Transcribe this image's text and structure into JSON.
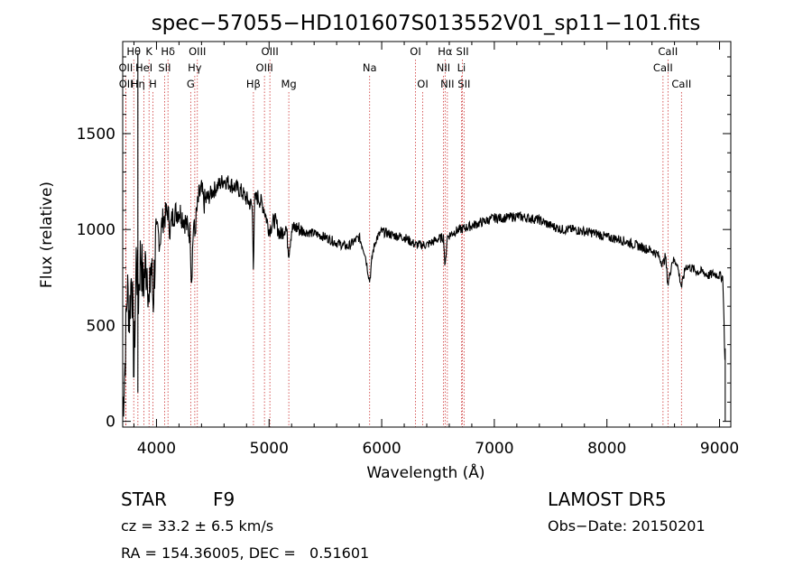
{
  "chart_data": {
    "type": "line",
    "title": "spec−57055−HD101607S013552V01_sp11−101.fits",
    "xlabel": "Wavelength (Å)",
    "ylabel": "Flux (relative)",
    "xlim": [
      3700,
      9100
    ],
    "ylim": [
      -30,
      1980
    ],
    "xticks": [
      4000,
      5000,
      6000,
      7000,
      8000,
      9000
    ],
    "yticks": [
      0,
      500,
      1000,
      1500
    ],
    "grid": false,
    "line_color": "#000000",
    "marker_color": "#cc3333",
    "spectral_lines": [
      {
        "label": "Hθ",
        "wavelength": 3798,
        "row": 0
      },
      {
        "label": "K",
        "wavelength": 3934,
        "row": 0
      },
      {
        "label": "Hδ",
        "wavelength": 4102,
        "row": 0
      },
      {
        "label": "OIII",
        "wavelength": 4363,
        "row": 0
      },
      {
        "label": "OIII",
        "wavelength": 5007,
        "row": 0
      },
      {
        "label": "OI",
        "wavelength": 6300,
        "row": 0
      },
      {
        "label": "Hα",
        "wavelength": 6563,
        "row": 0
      },
      {
        "label": "SII",
        "wavelength": 6717,
        "row": 0
      },
      {
        "label": "CaII",
        "wavelength": 8542,
        "row": 0
      },
      {
        "label": "OII",
        "wavelength": 3727,
        "row": 1
      },
      {
        "label": "HeI",
        "wavelength": 3889,
        "row": 1
      },
      {
        "label": "SII",
        "wavelength": 4072,
        "row": 1
      },
      {
        "label": "Hγ",
        "wavelength": 4340,
        "row": 1
      },
      {
        "label": "OIII",
        "wavelength": 4959,
        "row": 1
      },
      {
        "label": "Na",
        "wavelength": 5893,
        "row": 1
      },
      {
        "label": "NII",
        "wavelength": 6548,
        "row": 1
      },
      {
        "label": "Li",
        "wavelength": 6708,
        "row": 1
      },
      {
        "label": "CaII",
        "wavelength": 8498,
        "row": 1
      },
      {
        "label": "OII",
        "wavelength": 3729,
        "row": 2
      },
      {
        "label": "Hη",
        "wavelength": 3835,
        "row": 2
      },
      {
        "label": "H",
        "wavelength": 3968,
        "row": 2
      },
      {
        "label": "G",
        "wavelength": 4304,
        "row": 2
      },
      {
        "label": "Hβ",
        "wavelength": 4861,
        "row": 2
      },
      {
        "label": "Mg",
        "wavelength": 5175,
        "row": 2
      },
      {
        "label": "OI",
        "wavelength": 6364,
        "row": 2
      },
      {
        "label": "NII",
        "wavelength": 6583,
        "row": 2
      },
      {
        "label": "SII",
        "wavelength": 6731,
        "row": 2
      },
      {
        "label": "CaII",
        "wavelength": 8662,
        "row": 2
      }
    ],
    "series": [
      {
        "wavelength": [
          3700,
          3720,
          3740,
          3760,
          3780,
          3800,
          3820,
          3840,
          3860,
          3880,
          3900,
          3920,
          3935,
          3950,
          3970,
          3990,
          4000,
          4010,
          4030,
          4050,
          4070,
          4100,
          4120,
          4150,
          4200,
          4250,
          4280,
          4300,
          4310,
          4330,
          4340,
          4350,
          4360,
          4380,
          4400,
          4420,
          4450,
          4500,
          4550,
          4600,
          4650,
          4700,
          4750,
          4800,
          4850,
          4861,
          4870,
          4900,
          4950,
          5000,
          5050,
          5100,
          5150,
          5175,
          5200,
          5250,
          5300,
          5400,
          5500,
          5600,
          5700,
          5800,
          5850,
          5893,
          5920,
          5950,
          6000,
          6100,
          6200,
          6300,
          6400,
          6500,
          6550,
          6563,
          6580,
          6600,
          6650,
          6700,
          6750,
          6800,
          6900,
          7000,
          7100,
          7200,
          7300,
          7400,
          7500,
          7600,
          7700,
          7800,
          7900,
          8000,
          8100,
          8200,
          8300,
          8400,
          8450,
          8498,
          8520,
          8542,
          8580,
          8620,
          8662,
          8700,
          8750,
          8800,
          8850,
          8900,
          8950,
          9000,
          9030,
          9050
        ],
        "flux": [
          60,
          300,
          700,
          550,
          800,
          250,
          850,
          650,
          900,
          700,
          800,
          820,
          550,
          850,
          620,
          900,
          960,
          1000,
          930,
          1040,
          1060,
          1100,
          1000,
          1080,
          1100,
          1050,
          1000,
          980,
          720,
          1050,
          960,
          1050,
          1100,
          1180,
          1200,
          1140,
          1160,
          1200,
          1230,
          1260,
          1240,
          1220,
          1200,
          1160,
          1120,
          800,
          1150,
          1170,
          1120,
          1000,
          1050,
          970,
          1020,
          880,
          1000,
          1010,
          990,
          980,
          960,
          930,
          910,
          960,
          880,
          730,
          880,
          950,
          990,
          970,
          960,
          920,
          920,
          950,
          960,
          790,
          960,
          970,
          990,
          1000,
          1010,
          1020,
          1040,
          1060,
          1060,
          1070,
          1060,
          1050,
          1020,
          1000,
          1000,
          990,
          980,
          960,
          950,
          930,
          910,
          890,
          870,
          820,
          860,
          710,
          840,
          830,
          700,
          810,
          800,
          780,
          780,
          760,
          770,
          760,
          750,
          260
        ]
      }
    ]
  },
  "info": {
    "object_type": "STAR",
    "subclass": "F9",
    "survey": "LAMOST DR5",
    "redshift": "cz = 33.2 ± 6.5 km/s",
    "obs_date": "Obs−Date: 20150201",
    "coords": "RA = 154.36005, DEC =   0.51601"
  }
}
